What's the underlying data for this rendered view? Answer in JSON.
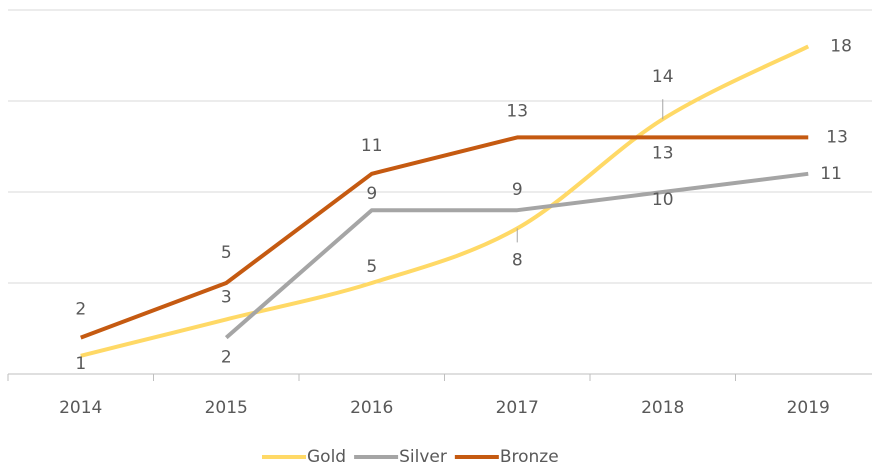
{
  "chart_data": {
    "type": "line",
    "categories": [
      "2014",
      "2015",
      "2016",
      "2017",
      "2018",
      "2019"
    ],
    "series": [
      {
        "name": "Gold",
        "color": "#ffd966",
        "smooth": true,
        "values": [
          1,
          3,
          5,
          8,
          14,
          18
        ]
      },
      {
        "name": "Silver",
        "color": "#a5a5a5",
        "values": [
          null,
          2,
          9,
          9,
          10,
          11
        ]
      },
      {
        "name": "Bronze",
        "color": "#c55a11",
        "values": [
          2,
          5,
          11,
          13,
          13,
          13
        ]
      }
    ],
    "ylim": [
      0,
      20
    ],
    "yticks": [
      0,
      5,
      10,
      15,
      20
    ],
    "grid": true,
    "legend": "bottom"
  }
}
